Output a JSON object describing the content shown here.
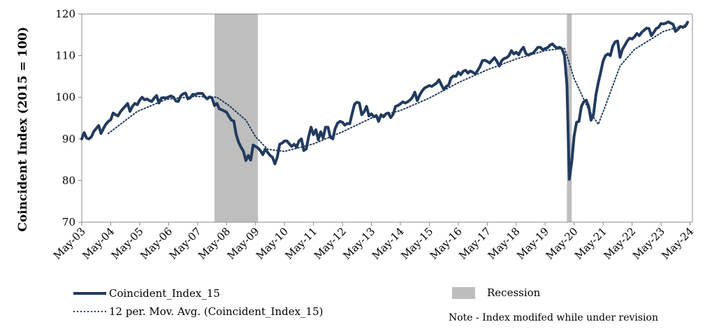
{
  "chart_data": {
    "type": "line",
    "title": "",
    "xlabel": "",
    "ylabel": "Coincident Index (2015 = 100)",
    "ylim": [
      70,
      120
    ],
    "yticks": [
      70,
      80,
      90,
      100,
      110,
      120
    ],
    "xlim": [
      "2003-05",
      "2024-06"
    ],
    "xtick_labels": [
      "May-03",
      "May-04",
      "May-05",
      "May-06",
      "May-07",
      "May-08",
      "May-09",
      "May-10",
      "May-11",
      "May-12",
      "May-13",
      "May-14",
      "May-15",
      "May-16",
      "May-17",
      "May-18",
      "May-19",
      "May-20",
      "May-21",
      "May-22",
      "May-23",
      "May-24"
    ],
    "grid": false,
    "legend": "bottom",
    "recessions": [
      {
        "start": "2007-12",
        "end": "2009-06"
      },
      {
        "start": "2020-02",
        "end": "2020-04"
      }
    ],
    "series": [
      {
        "name": "Coincident_Index_15",
        "color": "#223a5e",
        "style": "solid",
        "points": [
          [
            "2003-05",
            90
          ],
          [
            "2003-06",
            91.5
          ],
          [
            "2003-07",
            90.2
          ],
          [
            "2003-08",
            90
          ],
          [
            "2003-09",
            90.5
          ],
          [
            "2003-10",
            91.8
          ],
          [
            "2003-11",
            92.5
          ],
          [
            "2003-12",
            93.2
          ],
          [
            "2004-01",
            91.3
          ],
          [
            "2004-02",
            92.5
          ],
          [
            "2004-03",
            93.5
          ],
          [
            "2004-04",
            94.2
          ],
          [
            "2004-05",
            94.6
          ],
          [
            "2004-06",
            96.2
          ],
          [
            "2004-07",
            95.8
          ],
          [
            "2004-08",
            95.5
          ],
          [
            "2004-09",
            96.5
          ],
          [
            "2004-10",
            97.2
          ],
          [
            "2004-11",
            97.8
          ],
          [
            "2004-12",
            98.5
          ],
          [
            "2005-01",
            96.6
          ],
          [
            "2005-02",
            97.8
          ],
          [
            "2005-03",
            98.5
          ],
          [
            "2005-04",
            98.2
          ],
          [
            "2005-05",
            99.3
          ],
          [
            "2005-06",
            100
          ],
          [
            "2005-07",
            99.4
          ],
          [
            "2005-08",
            99.6
          ],
          [
            "2005-09",
            99.2
          ],
          [
            "2005-10",
            99.0
          ],
          [
            "2005-11",
            99.8
          ],
          [
            "2005-12",
            100.4
          ],
          [
            "2006-01",
            98.6
          ],
          [
            "2006-02",
            99.8
          ],
          [
            "2006-03",
            99.9
          ],
          [
            "2006-04",
            99.8
          ],
          [
            "2006-05",
            100.1
          ],
          [
            "2006-06",
            100.3
          ],
          [
            "2006-07",
            100
          ],
          [
            "2006-08",
            99.1
          ],
          [
            "2006-09",
            99.0
          ],
          [
            "2006-10",
            100.3
          ],
          [
            "2006-11",
            100.8
          ],
          [
            "2006-12",
            101
          ],
          [
            "2007-01",
            99.6
          ],
          [
            "2007-02",
            99.9
          ],
          [
            "2007-03",
            100.7
          ],
          [
            "2007-04",
            100.6
          ],
          [
            "2007-05",
            100.9
          ],
          [
            "2007-06",
            100.9
          ],
          [
            "2007-07",
            100.9
          ],
          [
            "2007-08",
            100.1
          ],
          [
            "2007-09",
            99.6
          ],
          [
            "2007-10",
            100.1
          ],
          [
            "2007-11",
            99.8
          ],
          [
            "2007-12",
            98.0
          ],
          [
            "2008-01",
            98.5
          ],
          [
            "2008-02",
            97.2
          ],
          [
            "2008-03",
            97.0
          ],
          [
            "2008-04",
            96.7
          ],
          [
            "2008-05",
            96.4
          ],
          [
            "2008-06",
            95.4
          ],
          [
            "2008-07",
            94.5
          ],
          [
            "2008-08",
            94.3
          ],
          [
            "2008-09",
            91.0
          ],
          [
            "2008-10",
            89.2
          ],
          [
            "2008-11",
            88.0
          ],
          [
            "2008-12",
            87.0
          ],
          [
            "2009-01",
            84.8
          ],
          [
            "2009-02",
            86.0
          ],
          [
            "2009-03",
            84.9
          ],
          [
            "2009-04",
            88.5
          ],
          [
            "2009-05",
            88.2
          ],
          [
            "2009-06",
            87.8
          ],
          [
            "2009-07",
            87.2
          ],
          [
            "2009-08",
            86.2
          ],
          [
            "2009-09",
            87.5
          ],
          [
            "2009-10",
            86.8
          ],
          [
            "2009-11",
            86.0
          ],
          [
            "2009-12",
            85.6
          ],
          [
            "2010-01",
            84.0
          ],
          [
            "2010-02",
            85.6
          ],
          [
            "2010-03",
            88.7
          ],
          [
            "2010-04",
            89.0
          ],
          [
            "2010-05",
            89.5
          ],
          [
            "2010-06",
            89.5
          ],
          [
            "2010-07",
            88.8
          ],
          [
            "2010-08",
            88.2
          ],
          [
            "2010-09",
            88.7
          ],
          [
            "2010-10",
            88.0
          ],
          [
            "2010-11",
            89.5
          ],
          [
            "2010-12",
            90.0
          ],
          [
            "2011-01",
            87.2
          ],
          [
            "2011-02",
            87.6
          ],
          [
            "2011-03",
            90.5
          ],
          [
            "2011-04",
            92.8
          ],
          [
            "2011-05",
            91.0
          ],
          [
            "2011-06",
            92.2
          ],
          [
            "2011-07",
            89.8
          ],
          [
            "2011-08",
            91.7
          ],
          [
            "2011-09",
            90.2
          ],
          [
            "2011-10",
            92.8
          ],
          [
            "2011-11",
            92.8
          ],
          [
            "2011-12",
            90.4
          ],
          [
            "2012-01",
            90.0
          ],
          [
            "2012-02",
            92.5
          ],
          [
            "2012-03",
            93.8
          ],
          [
            "2012-04",
            94.2
          ],
          [
            "2012-05",
            94.0
          ],
          [
            "2012-06",
            93.3
          ],
          [
            "2012-07",
            93.7
          ],
          [
            "2012-08",
            93.6
          ],
          [
            "2012-09",
            96.0
          ],
          [
            "2012-10",
            98.3
          ],
          [
            "2012-11",
            98.8
          ],
          [
            "2012-12",
            98.6
          ],
          [
            "2013-01",
            95.8
          ],
          [
            "2013-02",
            96.5
          ],
          [
            "2013-03",
            97.8
          ],
          [
            "2013-04",
            95.5
          ],
          [
            "2013-05",
            96.0
          ],
          [
            "2013-06",
            95.3
          ],
          [
            "2013-07",
            95.6
          ],
          [
            "2013-08",
            94.2
          ],
          [
            "2013-09",
            95.8
          ],
          [
            "2013-10",
            95.3
          ],
          [
            "2013-11",
            96.0
          ],
          [
            "2013-12",
            96.2
          ],
          [
            "2014-01",
            95.1
          ],
          [
            "2014-02",
            95.9
          ],
          [
            "2014-03",
            97.8
          ],
          [
            "2014-04",
            98.0
          ],
          [
            "2014-05",
            98.4
          ],
          [
            "2014-06",
            98.9
          ],
          [
            "2014-07",
            98.6
          ],
          [
            "2014-08",
            98.9
          ],
          [
            "2014-09",
            99.3
          ],
          [
            "2014-10",
            100.0
          ],
          [
            "2014-11",
            101.2
          ],
          [
            "2014-12",
            99.2
          ],
          [
            "2015-01",
            100.5
          ],
          [
            "2015-02",
            101.5
          ],
          [
            "2015-03",
            102.2
          ],
          [
            "2015-04",
            102.5
          ],
          [
            "2015-05",
            102.8
          ],
          [
            "2015-06",
            102.6
          ],
          [
            "2015-07",
            103.0
          ],
          [
            "2015-08",
            103.4
          ],
          [
            "2015-09",
            104.2
          ],
          [
            "2015-10",
            103.0
          ],
          [
            "2015-11",
            101.8
          ],
          [
            "2015-12",
            102.6
          ],
          [
            "2016-01",
            102.9
          ],
          [
            "2016-02",
            104.6
          ],
          [
            "2016-03",
            105.1
          ],
          [
            "2016-04",
            105.0
          ],
          [
            "2016-05",
            106.0
          ],
          [
            "2016-06",
            105.4
          ],
          [
            "2016-07",
            106.2
          ],
          [
            "2016-08",
            106.5
          ],
          [
            "2016-09",
            105.8
          ],
          [
            "2016-10",
            106.3
          ],
          [
            "2016-11",
            106.0
          ],
          [
            "2016-12",
            105.6
          ],
          [
            "2017-01",
            106.4
          ],
          [
            "2017-02",
            107.4
          ],
          [
            "2017-03",
            108.8
          ],
          [
            "2017-04",
            108.9
          ],
          [
            "2017-05",
            108.6
          ],
          [
            "2017-06",
            108.2
          ],
          [
            "2017-07",
            108.9
          ],
          [
            "2017-08",
            109.5
          ],
          [
            "2017-09",
            108.6
          ],
          [
            "2017-10",
            107.5
          ],
          [
            "2017-11",
            108.8
          ],
          [
            "2017-12",
            109.3
          ],
          [
            "2018-01",
            109.5
          ],
          [
            "2018-02",
            110.0
          ],
          [
            "2018-03",
            111.2
          ],
          [
            "2018-04",
            110.4
          ],
          [
            "2018-05",
            110.8
          ],
          [
            "2018-06",
            110.2
          ],
          [
            "2018-07",
            111.3
          ],
          [
            "2018-08",
            112.0
          ],
          [
            "2018-09",
            110.5
          ],
          [
            "2018-10",
            110.1
          ],
          [
            "2018-11",
            110.4
          ],
          [
            "2018-12",
            110.6
          ],
          [
            "2019-01",
            111.3
          ],
          [
            "2019-02",
            112.0
          ],
          [
            "2019-03",
            112.0
          ],
          [
            "2019-04",
            111.4
          ],
          [
            "2019-05",
            111.7
          ],
          [
            "2019-06",
            111.9
          ],
          [
            "2019-07",
            112.5
          ],
          [
            "2019-08",
            112.8
          ],
          [
            "2019-09",
            112.2
          ],
          [
            "2019-10",
            111.8
          ],
          [
            "2019-11",
            112.0
          ],
          [
            "2019-12",
            111.6
          ],
          [
            "2020-01",
            110.0
          ],
          [
            "2020-02",
            103.0
          ],
          [
            "2020-03",
            80.3
          ],
          [
            "2020-04",
            84.5
          ],
          [
            "2020-05",
            90.7
          ],
          [
            "2020-06",
            94.0
          ],
          [
            "2020-07",
            94.2
          ],
          [
            "2020-08",
            97.8
          ],
          [
            "2020-09",
            98.9
          ],
          [
            "2020-10",
            99.3
          ],
          [
            "2020-11",
            97.8
          ],
          [
            "2020-12",
            94.5
          ],
          [
            "2021-01",
            95.8
          ],
          [
            "2021-02",
            100.5
          ],
          [
            "2021-03",
            103.5
          ],
          [
            "2021-04",
            106.0
          ],
          [
            "2021-05",
            108.7
          ],
          [
            "2021-06",
            110.0
          ],
          [
            "2021-07",
            110.4
          ],
          [
            "2021-08",
            110.0
          ],
          [
            "2021-09",
            112.3
          ],
          [
            "2021-10",
            113.3
          ],
          [
            "2021-11",
            113.5
          ],
          [
            "2021-12",
            109.6
          ],
          [
            "2022-01",
            111.5
          ],
          [
            "2022-02",
            112.5
          ],
          [
            "2022-03",
            113.5
          ],
          [
            "2022-04",
            114.2
          ],
          [
            "2022-05",
            114.0
          ],
          [
            "2022-06",
            114.5
          ],
          [
            "2022-07",
            115.3
          ],
          [
            "2022-08",
            114.8
          ],
          [
            "2022-09",
            115.6
          ],
          [
            "2022-10",
            116.1
          ],
          [
            "2022-11",
            116.6
          ],
          [
            "2022-12",
            116.5
          ],
          [
            "2023-01",
            114.8
          ],
          [
            "2023-02",
            115.6
          ],
          [
            "2023-03",
            116.5
          ],
          [
            "2023-04",
            116.8
          ],
          [
            "2023-05",
            117.7
          ],
          [
            "2023-06",
            117.6
          ],
          [
            "2023-07",
            117.8
          ],
          [
            "2023-08",
            118.1
          ],
          [
            "2023-09",
            117.8
          ],
          [
            "2023-10",
            117.5
          ],
          [
            "2023-11",
            115.8
          ],
          [
            "2023-12",
            116.3
          ],
          [
            "2024-01",
            117.0
          ],
          [
            "2024-02",
            116.8
          ],
          [
            "2024-03",
            117.0
          ],
          [
            "2024-04",
            118.0
          ]
        ]
      },
      {
        "name": "12 per. Mov. Avg. (Coincident_Index_15)",
        "color": "#223a5e",
        "style": "dotted",
        "points": [
          [
            "2004-04",
            91.3
          ],
          [
            "2005-04",
            96.6
          ],
          [
            "2006-04",
            99.5
          ],
          [
            "2007-04",
            100.2
          ],
          [
            "2008-01",
            100.0
          ],
          [
            "2008-06",
            98.0
          ],
          [
            "2009-01",
            94.5
          ],
          [
            "2009-05",
            90.5
          ],
          [
            "2009-10",
            87.5
          ],
          [
            "2010-05",
            87.0
          ],
          [
            "2011-05",
            88.8
          ],
          [
            "2012-05",
            91.7
          ],
          [
            "2013-05",
            95.0
          ],
          [
            "2014-05",
            96.8
          ],
          [
            "2015-05",
            99.8
          ],
          [
            "2016-05",
            103.5
          ],
          [
            "2017-05",
            106.6
          ],
          [
            "2018-05",
            109.2
          ],
          [
            "2019-05",
            111.2
          ],
          [
            "2020-01",
            111.8
          ],
          [
            "2020-05",
            104.5
          ],
          [
            "2020-11",
            97.0
          ],
          [
            "2021-03",
            93.5
          ],
          [
            "2021-06",
            98.0
          ],
          [
            "2021-12",
            107.5
          ],
          [
            "2022-06",
            111.5
          ],
          [
            "2023-06",
            115.8
          ],
          [
            "2024-04",
            117.5
          ]
        ]
      }
    ],
    "recession_legend_label": "Recession",
    "recession_color": "#bebebe",
    "note": "Note - Index modifed while under revision"
  }
}
